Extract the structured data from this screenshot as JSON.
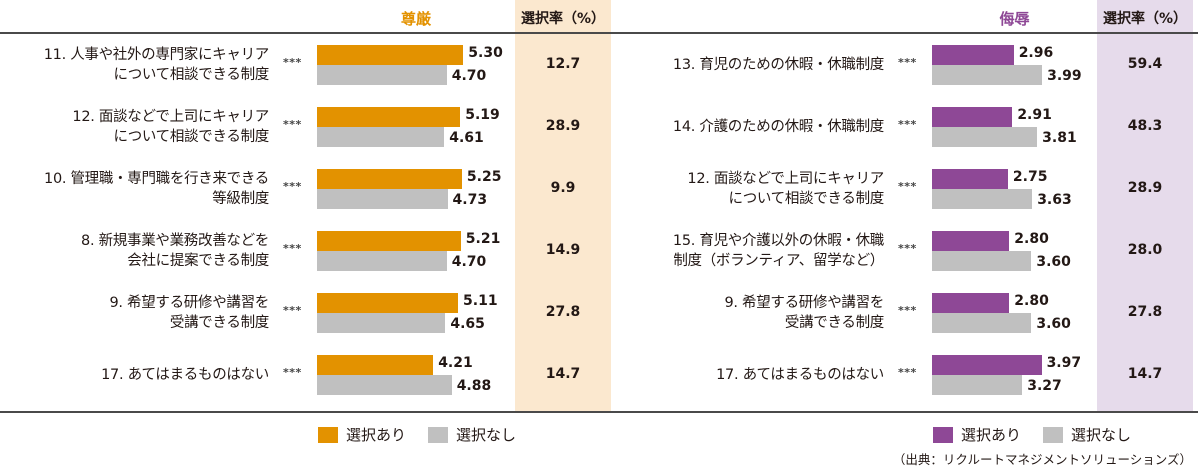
{
  "chart_data": [
    {
      "type": "bar",
      "orientation": "horizontal",
      "title": "尊厳",
      "rate_header": "選択率（%）",
      "categories": [
        "11. 人事や社外の専門家にキャリアについて相談できる制度",
        "12. 面談などで上司にキャリアについて相談できる制度",
        "10. 管理職・専門職を行き来できる等級制度",
        "8. 新規事業や業務改善などを会社に提案できる制度",
        "9. 希望する研修や講習を受講できる制度",
        "17. あてはまるものはない"
      ],
      "series": [
        {
          "name": "選択あり",
          "color": "#e39200",
          "values": [
            5.3,
            5.19,
            5.25,
            5.21,
            5.11,
            4.21
          ]
        },
        {
          "name": "選択なし",
          "color": "#c0c0c0",
          "values": [
            4.7,
            4.61,
            4.73,
            4.7,
            4.65,
            4.88
          ]
        }
      ],
      "significance": [
        "***",
        "***",
        "***",
        "***",
        "***",
        "***"
      ],
      "selection_rate_pct": [
        12.7,
        28.9,
        9.9,
        14.9,
        27.8,
        14.7
      ],
      "xlabel": "",
      "ylabel": "",
      "grid": false,
      "legend_position": "bottom"
    },
    {
      "type": "bar",
      "orientation": "horizontal",
      "title": "侮辱",
      "rate_header": "選択率（%）",
      "categories": [
        "13. 育児のための休暇・休職制度",
        "14. 介護のための休暇・休職制度",
        "12. 面談などで上司にキャリアについて相談できる制度",
        "15. 育児や介護以外の休暇・休職制度（ボランティア、留学など）",
        "9. 希望する研修や講習を受講できる制度",
        "17. あてはまるものはない"
      ],
      "series": [
        {
          "name": "選択あり",
          "color": "#8e4896",
          "values": [
            2.96,
            2.91,
            2.75,
            2.8,
            2.8,
            3.97
          ]
        },
        {
          "name": "選択なし",
          "color": "#c0c0c0",
          "values": [
            3.99,
            3.81,
            3.63,
            3.6,
            3.6,
            3.27
          ]
        }
      ],
      "significance": [
        "***",
        "***",
        "***",
        "***",
        "***",
        "***"
      ],
      "selection_rate_pct": [
        59.4,
        48.3,
        28.9,
        28.0,
        27.8,
        14.7
      ],
      "xlabel": "",
      "ylabel": "",
      "grid": false,
      "legend_position": "bottom"
    }
  ],
  "left": {
    "title": "尊厳",
    "title_color": "#e39200",
    "rate_header": "選択率（%）",
    "rows": [
      {
        "line1": "11. 人事や社外の専門家にキャリア",
        "line2": "について相談できる制度",
        "stars": "***",
        "yes": "5.30",
        "no": "4.70",
        "rate": "12.7"
      },
      {
        "line1": "12. 面談などで上司にキャリア",
        "line2": "について相談できる制度",
        "stars": "***",
        "yes": "5.19",
        "no": "4.61",
        "rate": "28.9"
      },
      {
        "line1": "10. 管理職・専門職を行き来できる",
        "line2": "等級制度",
        "stars": "***",
        "yes": "5.25",
        "no": "4.73",
        "rate": "9.9"
      },
      {
        "line1": "8. 新規事業や業務改善などを",
        "line2": "会社に提案できる制度",
        "stars": "***",
        "yes": "5.21",
        "no": "4.70",
        "rate": "14.9"
      },
      {
        "line1": "9. 希望する研修や講習を",
        "line2": "受講できる制度",
        "stars": "***",
        "yes": "5.11",
        "no": "4.65",
        "rate": "27.8"
      },
      {
        "line1": "17. あてはまるものはない",
        "line2": "",
        "stars": "***",
        "yes": "4.21",
        "no": "4.88",
        "rate": "14.7"
      }
    ],
    "legend": {
      "yes": "選択あり",
      "no": "選択なし"
    }
  },
  "right": {
    "title": "侮辱",
    "title_color": "#8e4896",
    "rate_header": "選択率（%）",
    "rows": [
      {
        "line1": "13. 育児のための休暇・休職制度",
        "line2": "",
        "stars": "***",
        "yes": "2.96",
        "no": "3.99",
        "rate": "59.4"
      },
      {
        "line1": "14. 介護のための休暇・休職制度",
        "line2": "",
        "stars": "***",
        "yes": "2.91",
        "no": "3.81",
        "rate": "48.3"
      },
      {
        "line1": "12. 面談などで上司にキャリア",
        "line2": "について相談できる制度",
        "stars": "***",
        "yes": "2.75",
        "no": "3.63",
        "rate": "28.9"
      },
      {
        "line1": "15. 育児や介護以外の休暇・休職",
        "line2": "制度（ボランティア、留学など）",
        "stars": "***",
        "yes": "2.80",
        "no": "3.60",
        "rate": "28.0"
      },
      {
        "line1": "9. 希望する研修や講習を",
        "line2": "受講できる制度",
        "stars": "***",
        "yes": "2.80",
        "no": "3.60",
        "rate": "27.8"
      },
      {
        "line1": "17. あてはまるものはない",
        "line2": "",
        "stars": "***",
        "yes": "3.97",
        "no": "3.27",
        "rate": "14.7"
      }
    ],
    "legend": {
      "yes": "選択あり",
      "no": "選択なし"
    }
  },
  "source": "（出典：リクルートマネジメントソリューションズ）"
}
